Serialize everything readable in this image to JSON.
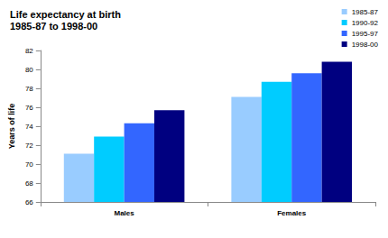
{
  "chart_data": {
    "type": "bar",
    "title": "Life expectancy at birth\n1985-87 to 1998-00",
    "y_label": "Years of life",
    "categories": [
      "Males",
      "Females"
    ],
    "series": [
      {
        "name": "1985-87",
        "color": "#99ccff",
        "values": [
          71.1,
          77.1
        ]
      },
      {
        "name": "1990-92",
        "color": "#00ccff",
        "values": [
          72.9,
          78.7
        ]
      },
      {
        "name": "1995-97",
        "color": "#3366ff",
        "values": [
          74.3,
          79.6
        ]
      },
      {
        "name": "1998-00",
        "color": "#000080",
        "values": [
          75.7,
          80.8
        ]
      }
    ],
    "ylim": [
      66,
      82
    ],
    "yticks": [
      66,
      68,
      70,
      72,
      74,
      76,
      78,
      80,
      82
    ],
    "grid": false,
    "legend": "top-right"
  }
}
